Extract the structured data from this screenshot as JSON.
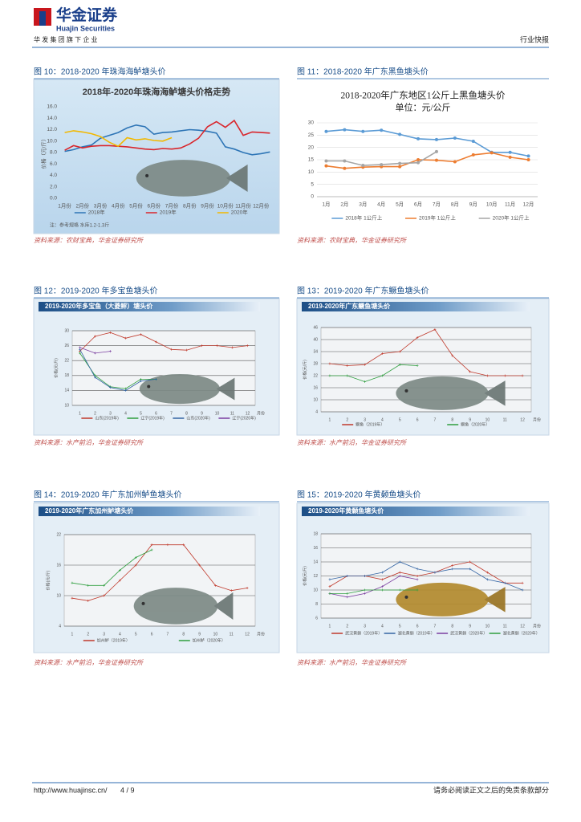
{
  "header": {
    "logo": "华金证券",
    "logo_en": "Huajin Securities",
    "group": "华 发 集 团 旗 下 企 业",
    "section": "行业快报"
  },
  "figures": [
    {
      "caption": "图 10：2018-2020 年珠海海鲈塘头价",
      "source": "资料来源：农财宝典，华金证券研究所"
    },
    {
      "caption": "图 11：2018-2020 年广东黑鱼塘头价",
      "source": "资料来源：农财宝典，华金证券研究所"
    },
    {
      "caption": "图 12：2019-2020 年多宝鱼塘头价",
      "source": "资料来源：水产前沿，华金证券研究所"
    },
    {
      "caption": "图 13：2019-2020 年广东鳜鱼塘头价",
      "source": "资料来源：水产前沿，华金证券研究所"
    },
    {
      "caption": "图 14：2019-2020 年广东加州鲈鱼塘头价",
      "source": "资料来源：水产前沿，华金证券研究所"
    },
    {
      "caption": "图 15：2019-2020 年黄颡鱼塘头价",
      "source": "资料来源：水产前沿，华金证券研究所"
    }
  ],
  "chart_data": [
    {
      "type": "line",
      "title": "2018年-2020年珠海海鲈塘头价格走势",
      "y_label": "价格（元/斤）",
      "note": "注：参考规格 水库1.2-1.3斤",
      "grid": false,
      "categories": [
        "1月份",
        null,
        "2月份",
        null,
        "3月份",
        null,
        "4月份",
        null,
        "5月份",
        null,
        "6月份",
        null,
        "7月份",
        null,
        "8月份",
        null,
        "9月份",
        null,
        "10月份",
        null,
        "11月份",
        null,
        "12月份",
        null
      ],
      "ylim": [
        0,
        16
      ],
      "yticks": [
        {
          "value": 0,
          "label": "0.0"
        },
        {
          "value": 2,
          "label": "2.0"
        },
        {
          "value": 4,
          "label": "4.0"
        },
        {
          "value": 6,
          "label": "6.0"
        },
        {
          "value": 8,
          "label": "8.0"
        },
        {
          "value": 10,
          "label": "10.0"
        },
        {
          "value": 12,
          "label": "12.0"
        },
        {
          "value": 14,
          "label": "14.0"
        },
        {
          "value": 16,
          "label": "16.0"
        }
      ],
      "series": [
        {
          "name": "2018年",
          "color": "#2e75b6",
          "values": [
            8.2,
            8.5,
            9.0,
            9.3,
            10.5,
            11.0,
            11.5,
            12.3,
            12.8,
            12.5,
            11.2,
            11.5,
            11.6,
            11.8,
            12.0,
            11.9,
            11.7,
            11.4,
            9.0,
            8.6,
            8.0,
            7.6,
            7.8,
            8.1
          ]
        },
        {
          "name": "2019年",
          "color": "#d9262c",
          "values": [
            8.4,
            9.2,
            8.8,
            9.1,
            9.2,
            9.2,
            9.1,
            9.0,
            8.8,
            8.6,
            8.5,
            8.7,
            8.6,
            8.8,
            9.5,
            10.5,
            12.5,
            13.4,
            12.4,
            13.6,
            11.0,
            11.6,
            11.5,
            11.4
          ]
        },
        {
          "name": "2020年",
          "color": "#f2b800",
          "values": [
            11.5,
            11.8,
            11.6,
            11.3,
            10.8,
            9.8,
            9.1,
            10.6,
            10.2,
            10.4,
            10.1,
            10.0,
            10.6,
            null,
            null,
            null,
            null,
            null,
            null,
            null,
            null,
            null,
            null,
            null
          ]
        }
      ]
    },
    {
      "type": "line",
      "title": "2018-2020年广东地区1公斤上黑鱼塘头价",
      "subtitle": "单位：元/公斤",
      "grid": true,
      "markers": true,
      "categories": [
        "1月",
        "2月",
        "3月",
        "4月",
        "5月",
        "6月",
        "7月",
        "8月",
        "9月",
        "10月",
        "11月",
        "12月"
      ],
      "ylim": [
        0,
        30
      ],
      "yticks": [
        0,
        5,
        10,
        15,
        20,
        25,
        30
      ],
      "series": [
        {
          "name": "2018年 1公斤上",
          "color": "#5b9bd5",
          "values": [
            26.5,
            27.2,
            26.5,
            27,
            25.3,
            23.5,
            23.2,
            23.8,
            22.5,
            18,
            18,
            16.5
          ]
        },
        {
          "name": "2019年 1公斤上",
          "color": "#ed7d31",
          "values": [
            12.5,
            11.5,
            12,
            12.2,
            12.2,
            15,
            14.8,
            14.2,
            17,
            17.8,
            16,
            15
          ]
        },
        {
          "name": "2020年 1公斤上",
          "color": "#a5a5a5",
          "values": [
            14.5,
            14.5,
            12.7,
            13,
            13.5,
            13.8,
            18.3,
            null,
            null,
            null,
            null,
            null
          ]
        }
      ]
    },
    {
      "type": "line",
      "title": "2019-2020年多宝鱼（大菱鲆）塘头价",
      "y_label": "价格(元/斤)",
      "x_label": "月份",
      "grid": true,
      "categories": [
        "1",
        "2",
        "3",
        "4",
        "5",
        "6",
        "7",
        "8",
        "9",
        "10",
        "11",
        "12"
      ],
      "ylim": [
        10,
        30
      ],
      "yticks": [
        10,
        14,
        18,
        22,
        26,
        30
      ],
      "series": [
        {
          "name": "山东(2019年)",
          "color": "#c0392b",
          "values": [
            24.5,
            28.5,
            29.5,
            28,
            29,
            27,
            25,
            24.8,
            26,
            26,
            25.5,
            26
          ]
        },
        {
          "name": "辽宁(2019年)",
          "color": "#2e9e3e",
          "values": [
            24,
            18,
            15,
            14.5,
            17,
            17,
            null,
            null,
            null,
            null,
            null,
            null
          ]
        },
        {
          "name": "山东(2020年)",
          "color": "#3465a4",
          "values": [
            25,
            17.5,
            14.8,
            14,
            16.5,
            17,
            null,
            null,
            null,
            null,
            null,
            null
          ]
        },
        {
          "name": "辽宁(2020年)",
          "color": "#7b3fa0",
          "values": [
            25.5,
            24,
            24.5,
            null,
            null,
            null,
            null,
            null,
            null,
            null,
            null,
            null
          ]
        }
      ]
    },
    {
      "type": "line",
      "title": "2019-2020年广东鳜鱼塘头价",
      "y_label": "价格(元/斤)",
      "x_label": "月份",
      "grid": true,
      "categories": [
        "1",
        "2",
        "3",
        "4",
        "5",
        "6",
        "7",
        "8",
        "9",
        "10",
        "11",
        "12"
      ],
      "ylim": [
        4,
        46
      ],
      "yticks": [
        4,
        10,
        16,
        22,
        28,
        34,
        40,
        46
      ],
      "series": [
        {
          "name": "鳜鱼（2019年）",
          "color": "#c0392b",
          "values": [
            28,
            27,
            27.5,
            33,
            34,
            41,
            45,
            32,
            24,
            22,
            22,
            22
          ]
        },
        {
          "name": "鳜鱼（2020年）",
          "color": "#2e9e3e",
          "values": [
            22,
            22,
            19,
            22,
            27.5,
            27,
            null,
            null,
            null,
            null,
            null,
            null
          ]
        }
      ]
    },
    {
      "type": "line",
      "title": "2019-2020年广东加州鲈塘头价",
      "y_label": "价格(元/斤)",
      "x_label": "月份",
      "grid": true,
      "categories": [
        "1",
        "2",
        "3",
        "4",
        "5",
        "6",
        "7",
        "8",
        "9",
        "10",
        "11",
        "12"
      ],
      "ylim": [
        4,
        22
      ],
      "yticks": [
        4,
        10,
        16,
        22
      ],
      "series": [
        {
          "name": "加州鲈（2019年）",
          "color": "#c0392b",
          "values": [
            9.5,
            9,
            10,
            13,
            16,
            20,
            20,
            20,
            16,
            12,
            11,
            11.5
          ]
        },
        {
          "name": "加州鲈（2020年）",
          "color": "#2e9e3e",
          "values": [
            12.5,
            12,
            12,
            15,
            17.5,
            19,
            null,
            null,
            null,
            null,
            null,
            null
          ]
        }
      ]
    },
    {
      "type": "line",
      "title": "2019-2020年黄颡鱼塘头价",
      "y_label": "价格(元/斤)",
      "x_label": "月份",
      "grid": true,
      "categories": [
        "1",
        "2",
        "3",
        "4",
        "5",
        "6",
        "7",
        "8",
        "9",
        "10",
        "11",
        "12"
      ],
      "ylim": [
        6,
        18
      ],
      "yticks": [
        6,
        8,
        10,
        12,
        14,
        16,
        18
      ],
      "series": [
        {
          "name": "武汉黄颡（2019年）",
          "color": "#c0392b",
          "values": [
            10.5,
            12,
            12,
            11.5,
            12.5,
            12,
            12.5,
            13.5,
            14,
            12.5,
            11,
            11
          ]
        },
        {
          "name": "湖北黄颡（2019年）",
          "color": "#3465a4",
          "values": [
            11.5,
            12,
            12,
            12.5,
            14,
            13,
            12.5,
            13,
            13,
            11.5,
            11,
            10
          ]
        },
        {
          "name": "武汉黄颡（2020年）",
          "color": "#7b3fa0",
          "values": [
            9.5,
            9,
            9.5,
            10.5,
            12,
            11.5,
            null,
            null,
            null,
            null,
            null,
            null
          ]
        },
        {
          "name": "湖北黄颡（2020年）",
          "color": "#2e9e3e",
          "values": [
            9.5,
            9.5,
            10,
            10,
            10,
            10,
            null,
            null,
            null,
            null,
            null,
            null
          ]
        }
      ]
    }
  ],
  "footer": {
    "url": "http://www.huajinsc.cn/",
    "page": "4 / 9",
    "disclaimer": "请务必阅读正文之后的免责条款部分"
  }
}
